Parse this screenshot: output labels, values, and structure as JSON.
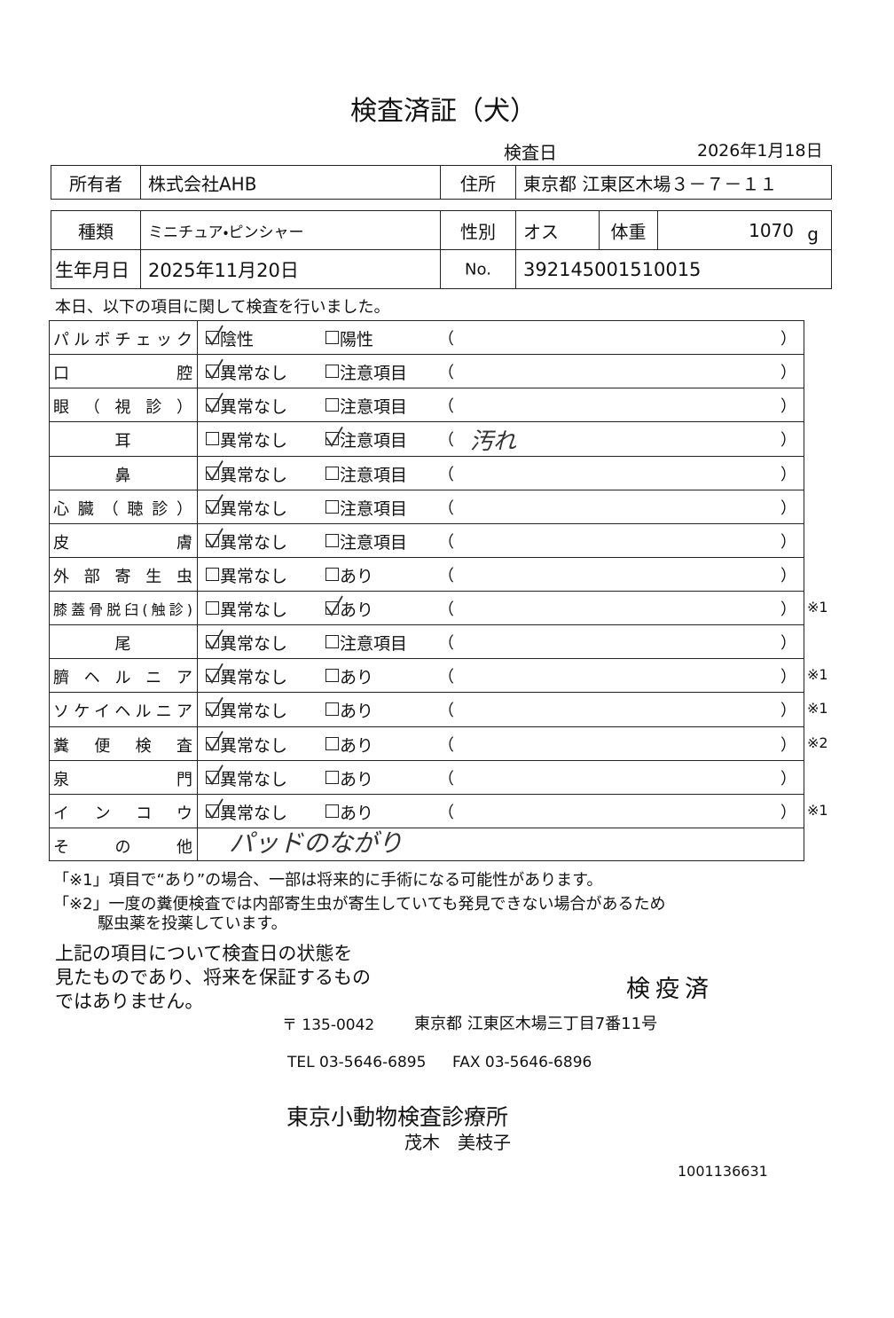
{
  "title": "検査済証（犬）",
  "exam_date_label": "検査日",
  "exam_date": "2026年1月18日",
  "owner_table": {
    "owner_label": "所有者",
    "owner": "株式会社AHB",
    "address_label": "住所",
    "address": "東京都 江東区木場３－７－１１"
  },
  "animal_table": {
    "kind_label": "種類",
    "kind": "ミニチュア・ピンシャー",
    "sex_label": "性別",
    "sex": "オス",
    "weight_label": "体重",
    "weight": "1070",
    "weight_unit": "g",
    "birth_label": "生年月日",
    "birth": "2025年11月20日",
    "no_label": "No.",
    "no": "392145001510015"
  },
  "intro": "本日、以下の項目に関して検査を行いました。",
  "paren_open": "（",
  "paren_close": "）",
  "items": [
    {
      "label": "パルボチェック",
      "option1": "陰性",
      "option2": "陽性",
      "checked": 1
    },
    {
      "label": "口腔",
      "option1": "異常なし",
      "option2": "注意項目",
      "checked": 1
    },
    {
      "label": "眼（視診）",
      "option1": "異常なし",
      "option2": "注意項目",
      "checked": 1
    },
    {
      "label": "耳",
      "align": "center",
      "option1": "異常なし",
      "option2": "注意項目",
      "checked": 2,
      "note": "汚れ"
    },
    {
      "label": "鼻",
      "align": "center",
      "option1": "異常なし",
      "option2": "注意項目",
      "checked": 1
    },
    {
      "label": "心臓（聴診）",
      "option1": "異常なし",
      "option2": "注意項目",
      "checked": 1
    },
    {
      "label": "皮膚",
      "option1": "異常なし",
      "option2": "注意項目",
      "checked": 1
    },
    {
      "label": "外部寄生虫",
      "option1": "異常なし",
      "option2": "あり"
    },
    {
      "label": "膝蓋骨脱臼(触診)",
      "option1": "異常なし",
      "option2": "あり",
      "checked": 2,
      "mark": "※1"
    },
    {
      "label": "尾",
      "align": "center",
      "option1": "異常なし",
      "option2": "注意項目",
      "checked": 1
    },
    {
      "label": "臍ヘルニア",
      "option1": "異常なし",
      "option2": "あり",
      "checked": 1,
      "mark": "※1"
    },
    {
      "label": "ソケイヘルニア",
      "option1": "異常なし",
      "option2": "あり",
      "checked": 1,
      "mark": "※1"
    },
    {
      "label": "糞便検査",
      "option1": "異常なし",
      "option2": "あり",
      "checked": 1,
      "mark": "※2"
    },
    {
      "label": "泉門",
      "option1": "異常なし",
      "option2": "あり",
      "checked": 1
    },
    {
      "label": "インコウ",
      "option1": "異常なし",
      "option2": "あり",
      "checked": 1,
      "mark": "※1"
    },
    {
      "label": "その他",
      "note": "パッドのながり"
    }
  ],
  "footnotes": [
    "「※1」項目で“あり”の場合、一部は将来的に手術になる可能性があります。",
    "「※2」一度の糞便検査では内部寄生虫が寄生していても発見できない場合があるため",
    "駆虫薬を投薬しています。"
  ],
  "statement": [
    "上記の項目について検査日の状態を",
    "見たものであり、将来を保証するもの",
    "ではありません。"
  ],
  "stamp": "検疫済",
  "postal": "〒 135-0042",
  "clinic_address": "東京都 江東区木場三丁目7番11号",
  "tel": "TEL 03-5646-6895",
  "fax": "FAX 03-5646-6896",
  "clinic": "東京小動物検査診療所",
  "doctor": "茂木　美枝子",
  "serial": "1001136631"
}
